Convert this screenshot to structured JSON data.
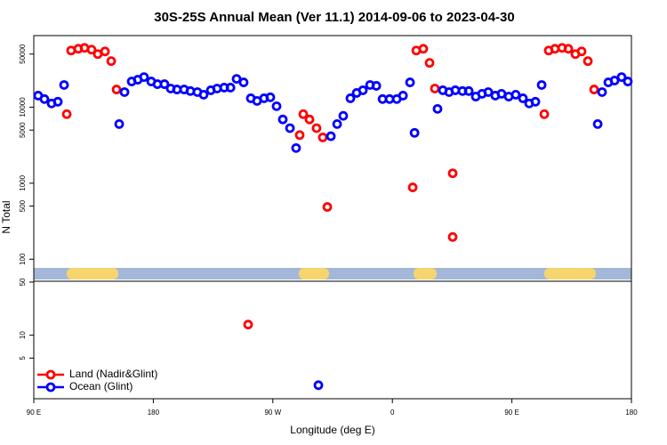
{
  "chart_data": {
    "type": "scatter",
    "title": "30S-25S Annual Mean (Ver 11.1)   2014-09-06 to 2023-04-30",
    "x_label": "Longitude (deg E)",
    "y_label": "N Total",
    "y_scale": "log",
    "xlim": [
      90,
      540
    ],
    "ylim": [
      1.46,
      87500
    ],
    "xticks": [
      {
        "value": 90,
        "label": "90 E"
      },
      {
        "value": 180,
        "label": "180"
      },
      {
        "value": 270,
        "label": "90 W"
      },
      {
        "value": 360,
        "label": "0"
      },
      {
        "value": 450,
        "label": "90 E"
      },
      {
        "value": 540,
        "label": "180"
      }
    ],
    "yticks": [
      5,
      10,
      50,
      100,
      500,
      1000,
      5000,
      10000,
      50000
    ],
    "legend_position": "lower left",
    "series": [
      {
        "name": "Land (Nadir&Glint)",
        "color": "#ff0000",
        "x": [
          114.8,
          118.1,
          123.5,
          128.2,
          133.5,
          138.2,
          143.6,
          148.3,
          152.3,
          251.4,
          290.2,
          292.9,
          297.6,
          302.9,
          307.6,
          311,
          375.3,
          378,
          383.3,
          388,
          392,
          405.4,
          405.4,
          474.4,
          477.7,
          482.4,
          487.8,
          492.5,
          497.8,
          502.5,
          507.2,
          511.9
        ],
        "values": [
          8100,
          55700,
          58700,
          60300,
          57200,
          50000,
          54200,
          40400,
          17100,
          13.8,
          4300,
          8100,
          6900,
          5300,
          4000,
          487,
          880,
          55700,
          58700,
          38300,
          17600,
          1350,
          196,
          8100,
          55700,
          58700,
          60300,
          58700,
          50000,
          54200,
          40400,
          17100
        ]
      },
      {
        "name": "Ocean (Glint)",
        "color": "#0000ff",
        "x": [
          93.3,
          98,
          103.4,
          108.1,
          112.8,
          154.3,
          158.3,
          163.7,
          168.3,
          173,
          178.4,
          183.1,
          188.4,
          193.1,
          197.8,
          203.2,
          207.9,
          213.2,
          217.9,
          223.3,
          228,
          233.4,
          238.1,
          242.7,
          248,
          253.4,
          258.1,
          263.4,
          268.1,
          272.8,
          277.5,
          282.9,
          287.5,
          304.3,
          313.7,
          318.4,
          323,
          328.4,
          333.1,
          337.8,
          343.2,
          347.9,
          352.6,
          357.9,
          363.3,
          368,
          373.3,
          376.7,
          394,
          398,
          402.7,
          407.4,
          412.8,
          417.5,
          422.8,
          427.5,
          432.2,
          437.5,
          442.2,
          447.6,
          452.9,
          458.3,
          463,
          467.7,
          472.4,
          514.6,
          517.9,
          522.6,
          527.3,
          532.6,
          537.3
        ],
        "values": [
          14200,
          12800,
          11200,
          11800,
          19600,
          6000,
          15800,
          21800,
          23000,
          24900,
          21800,
          20100,
          20100,
          17600,
          17100,
          17100,
          16300,
          15800,
          14600,
          16700,
          17600,
          18100,
          18100,
          23600,
          21200,
          13100,
          12100,
          13100,
          13500,
          10300,
          6900,
          5300,
          2900,
          2.2,
          4150,
          6000,
          7700,
          13100,
          15400,
          16700,
          19600,
          19100,
          12800,
          12800,
          12800,
          14200,
          21200,
          4600,
          9500,
          16700,
          15800,
          16700,
          16300,
          16300,
          13800,
          15000,
          15800,
          14200,
          15000,
          13800,
          14600,
          13100,
          11200,
          11800,
          19600,
          6000,
          15800,
          21200,
          22400,
          24900,
          21800
        ]
      }
    ]
  }
}
